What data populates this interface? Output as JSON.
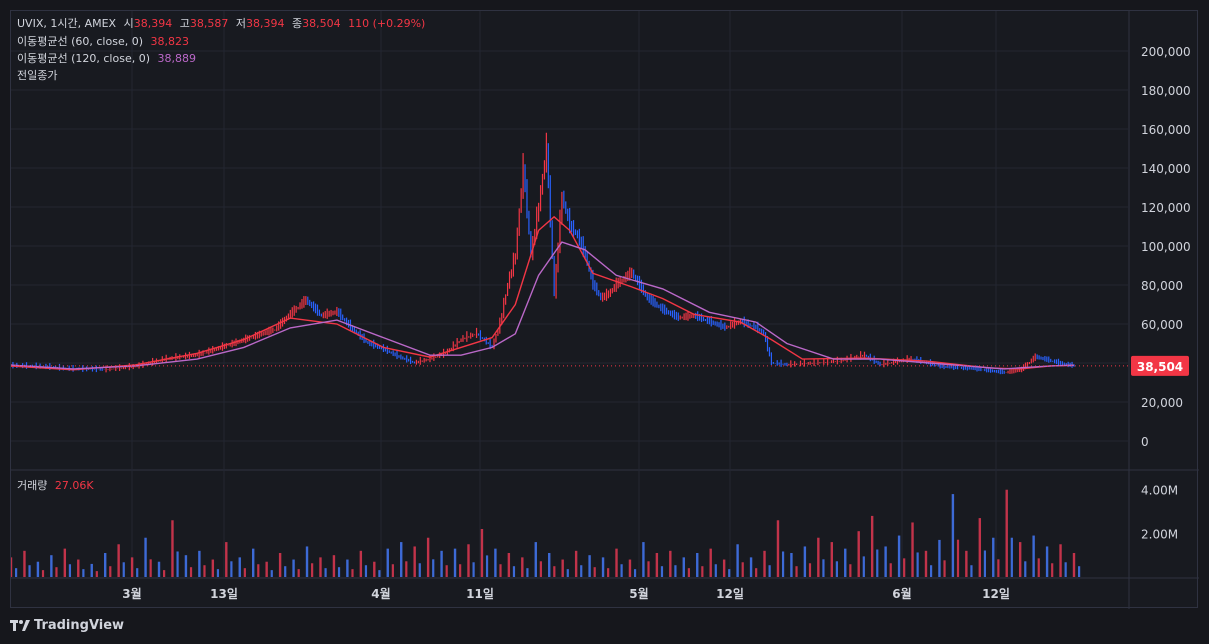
{
  "legend": {
    "symbol": "UVIX, 1시간, AMEX",
    "o_label": "시",
    "o_value": "38,394",
    "h_label": "고",
    "h_value": "38,587",
    "l_label": "저",
    "l_value": "38,394",
    "c_label": "종",
    "c_value": "38,504",
    "change": "110 (+0.29%)",
    "ma60_label": "이동평균선 (60, close, 0)",
    "ma60_value": "38,823",
    "ma120_label": "이동평균선 (120, close, 0)",
    "ma120_value": "38,889",
    "prev_close_label": "전일종가"
  },
  "volume_pane": {
    "label": "거래량",
    "value": "27.06K"
  },
  "price_tag": "38,504",
  "footer": {
    "brand": "TradingView",
    "logo_glyph": "𝙏𝙑"
  },
  "colors": {
    "up": "#f23645",
    "down": "#2962ff",
    "ma60": "#f23645",
    "ma120": "#ba68c8",
    "bg": "#181a20",
    "grid": "#232631"
  },
  "chart_data": {
    "type": "line",
    "price_axis_ticks": [
      "200,000",
      "180,000",
      "160,000",
      "140,000",
      "120,000",
      "100,000",
      "80,000",
      "60,000",
      "40,000",
      "20,000",
      "0"
    ],
    "volume_axis_ticks": [
      "4.00M",
      "2.00M"
    ],
    "x_tick_labels": [
      "3월",
      "13일",
      "4월",
      "11일",
      "5월",
      "12일",
      "6월",
      "12일"
    ],
    "ylim": [
      0,
      210000
    ],
    "current_price": 38504,
    "price": [
      [
        0,
        38500
      ],
      [
        4,
        38000
      ],
      [
        8,
        36800
      ],
      [
        12,
        36500
      ],
      [
        16,
        38000
      ],
      [
        20,
        42000
      ],
      [
        24,
        44000
      ],
      [
        28,
        49000
      ],
      [
        31,
        53000
      ],
      [
        34,
        57000
      ],
      [
        36,
        65000
      ],
      [
        38,
        72000
      ],
      [
        40,
        64000
      ],
      [
        42,
        66000
      ],
      [
        44,
        57000
      ],
      [
        46,
        50000
      ],
      [
        48,
        47000
      ],
      [
        50,
        43000
      ],
      [
        52,
        40000
      ],
      [
        54,
        42000
      ],
      [
        56,
        45000
      ],
      [
        58,
        52000
      ],
      [
        60,
        55000
      ],
      [
        62,
        48000
      ],
      [
        63,
        60000
      ],
      [
        64,
        80000
      ],
      [
        65,
        95000
      ],
      [
        66,
        140000
      ],
      [
        67,
        95000
      ],
      [
        68,
        120000
      ],
      [
        69,
        150000
      ],
      [
        70,
        75000
      ],
      [
        71,
        125000
      ],
      [
        72,
        110000
      ],
      [
        73,
        105000
      ],
      [
        74,
        95000
      ],
      [
        75,
        80000
      ],
      [
        76,
        73000
      ],
      [
        77,
        75000
      ],
      [
        78,
        80000
      ],
      [
        80,
        86000
      ],
      [
        82,
        73000
      ],
      [
        84,
        67000
      ],
      [
        86,
        63000
      ],
      [
        88,
        64000
      ],
      [
        90,
        61000
      ],
      [
        92,
        58000
      ],
      [
        94,
        61000
      ],
      [
        96,
        58000
      ],
      [
        97,
        55000
      ],
      [
        98,
        40000
      ],
      [
        100,
        39000
      ],
      [
        104,
        40000
      ],
      [
        107,
        41000
      ],
      [
        110,
        44000
      ],
      [
        112,
        39000
      ],
      [
        116,
        42000
      ],
      [
        120,
        38000
      ],
      [
        124,
        37000
      ],
      [
        128,
        35000
      ],
      [
        130,
        36000
      ],
      [
        132,
        43000
      ],
      [
        134,
        41000
      ],
      [
        136,
        39000
      ],
      [
        137,
        38504
      ]
    ],
    "ma60": [
      [
        0,
        38400
      ],
      [
        8,
        36500
      ],
      [
        16,
        39000
      ],
      [
        24,
        45000
      ],
      [
        30,
        52000
      ],
      [
        36,
        63000
      ],
      [
        42,
        60000
      ],
      [
        48,
        48000
      ],
      [
        54,
        43000
      ],
      [
        58,
        48000
      ],
      [
        62,
        53000
      ],
      [
        65,
        70000
      ],
      [
        68,
        108000
      ],
      [
        70,
        115000
      ],
      [
        72,
        108000
      ],
      [
        75,
        86000
      ],
      [
        80,
        79000
      ],
      [
        84,
        73000
      ],
      [
        88,
        65000
      ],
      [
        94,
        61000
      ],
      [
        98,
        52000
      ],
      [
        102,
        42000
      ],
      [
        110,
        42500
      ],
      [
        118,
        41000
      ],
      [
        126,
        37500
      ],
      [
        130,
        37000
      ],
      [
        134,
        38500
      ],
      [
        137,
        38823
      ]
    ],
    "ma120": [
      [
        0,
        38900
      ],
      [
        8,
        37000
      ],
      [
        16,
        38500
      ],
      [
        24,
        42000
      ],
      [
        30,
        48000
      ],
      [
        36,
        58000
      ],
      [
        42,
        62000
      ],
      [
        48,
        53000
      ],
      [
        54,
        44000
      ],
      [
        58,
        44000
      ],
      [
        62,
        48000
      ],
      [
        65,
        55000
      ],
      [
        68,
        85000
      ],
      [
        71,
        102000
      ],
      [
        74,
        98000
      ],
      [
        78,
        85000
      ],
      [
        84,
        78000
      ],
      [
        90,
        66000
      ],
      [
        96,
        61000
      ],
      [
        100,
        50000
      ],
      [
        106,
        42000
      ],
      [
        112,
        42000
      ],
      [
        120,
        39500
      ],
      [
        128,
        37000
      ],
      [
        134,
        38500
      ],
      [
        137,
        38889
      ]
    ],
    "volume_millions": [
      0.9,
      1.2,
      0.7,
      1.0,
      1.3,
      0.8,
      0.6,
      1.1,
      1.5,
      0.9,
      1.8,
      0.7,
      2.6,
      1.0,
      1.2,
      0.8,
      1.6,
      0.9,
      1.3,
      0.7,
      1.1,
      0.8,
      1.4,
      0.9,
      1.0,
      0.8,
      1.2,
      0.7,
      1.3,
      1.6,
      1.4,
      1.8,
      1.2,
      1.3,
      1.5,
      2.2,
      1.3,
      1.1,
      0.9,
      1.6,
      1.1,
      0.8,
      1.2,
      1.0,
      0.9,
      1.3,
      0.8,
      1.6,
      1.1,
      1.2,
      0.9,
      1.1,
      1.3,
      0.8,
      1.5,
      0.9,
      1.2,
      2.6,
      1.1,
      1.4,
      1.8,
      1.6,
      1.3,
      2.1,
      2.8,
      1.4,
      1.9,
      2.5,
      1.2,
      1.7,
      3.8,
      1.2,
      2.7,
      1.8,
      4.0,
      1.6,
      1.9,
      1.4,
      1.5,
      1.1
    ]
  }
}
